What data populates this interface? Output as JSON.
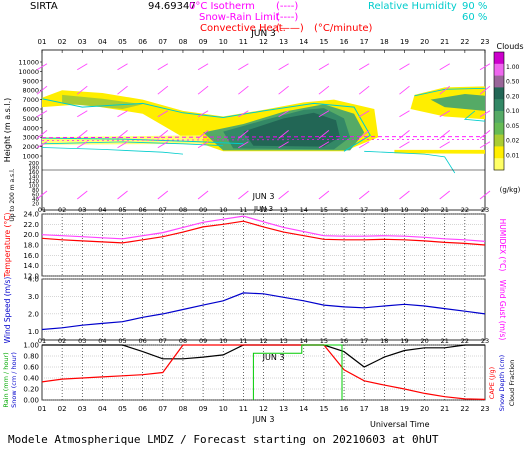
{
  "header": {
    "site": "SIRTA",
    "site_code": "94.69347",
    "legend": {
      "isotherm": {
        "label": "0°C Isotherm",
        "sample": "(----)",
        "color": "#ff00ff"
      },
      "snow_rain": {
        "label": "Snow-Rain Limit",
        "sample": "(----)",
        "color": "#ff00ff"
      },
      "convective": {
        "label": "Convective Heat.",
        "sample": "(——)",
        "unit": "(°C/minute)",
        "color": "#ff0000"
      },
      "rh": {
        "label": "Relative Humidity",
        "v1": "90 %",
        "v2": "60 %",
        "color": "#00cccc"
      }
    }
  },
  "footer": {
    "universal_time": "Universal Time",
    "caption": "Modele Atmospherique LMDZ / Forecast starting on 20210603 at 0hUT"
  },
  "chart_data": [
    {
      "id": "clouds",
      "type": "heatmap",
      "date_label": "JUN  3",
      "hours": [
        "01",
        "02",
        "03",
        "04",
        "05",
        "06",
        "07",
        "08",
        "09",
        "10",
        "11",
        "12",
        "13",
        "14",
        "15",
        "16",
        "17",
        "18",
        "19",
        "20",
        "21",
        "22",
        "23"
      ],
      "ylabel": "Height  (m a.s.l.)",
      "ylabel2": "Up to 200 m a.s.l.",
      "yticks_upper": [
        "11000",
        "10000",
        "9000",
        "8000",
        "7000",
        "6000",
        "5000",
        "4000",
        "3000",
        "2000",
        "1000"
      ],
      "yticks_lower": [
        "200",
        "180",
        "160",
        "140",
        "120",
        "100",
        "80",
        "60",
        "40",
        "20"
      ],
      "colorbar": {
        "title": "Clouds",
        "unit": "(g/kg)",
        "labels": [
          "1.00",
          "0.50",
          "0.20",
          "0.10",
          "0.05",
          "0.02",
          "0.01"
        ],
        "colors": [
          "#cc00cc",
          "#ee66ee",
          "#996699",
          "#226655",
          "#338866",
          "#55aa66",
          "#66bb55",
          "#aacc33",
          "#ffee00",
          "#ffff66"
        ]
      },
      "cloud_layers": [
        {
          "name": "thick cloud core",
          "x_hours": [
            9.5,
            16.8
          ],
          "height_m": [
            1400,
            6200
          ],
          "max_gkg": 0.2
        }
      ]
    },
    {
      "id": "temperature",
      "type": "line",
      "date_label": "JUN  3",
      "ylabel": "Temperature (°C)",
      "ylabel2": "HUMIDEX (°C)",
      "yticks": [
        "24.0",
        "22.0",
        "20.0",
        "18.0",
        "16.0",
        "14.0",
        "12.0"
      ],
      "ylim": [
        12,
        24
      ],
      "x": [
        1,
        2,
        3,
        4,
        5,
        6,
        7,
        8,
        9,
        10,
        11,
        12,
        13,
        14,
        15,
        16,
        17,
        18,
        19,
        20,
        21,
        22,
        23
      ],
      "series": [
        {
          "values": [
            19.3,
            19.0,
            18.8,
            18.6,
            18.4,
            19.0,
            19.6,
            20.5,
            21.5,
            22.0,
            22.6,
            21.5,
            20.5,
            19.8,
            19.1,
            19.0,
            19.0,
            19.1,
            19.0,
            18.8,
            18.5,
            18.3,
            18.0
          ],
          "color": "#ff0000"
        },
        {
          "values": [
            20.0,
            19.8,
            19.6,
            19.4,
            19.2,
            19.8,
            20.4,
            21.4,
            22.4,
            23.0,
            23.6,
            22.5,
            21.4,
            20.6,
            19.8,
            19.7,
            19.7,
            19.8,
            19.7,
            19.5,
            19.2,
            19.0,
            18.7
          ],
          "color": "#ff44ff"
        }
      ]
    },
    {
      "id": "wind",
      "type": "line",
      "ylabel": "Wind Speed (m/s)",
      "ylabel2": "Wind Gust (m/s)",
      "yticks": [
        "4.0",
        "3.0",
        "2.0",
        "1.0"
      ],
      "ylim": [
        0.5,
        4.0
      ],
      "x": [
        1,
        2,
        3,
        4,
        5,
        6,
        7,
        8,
        9,
        10,
        11,
        12,
        13,
        14,
        15,
        16,
        17,
        18,
        19,
        20,
        21,
        22,
        23
      ],
      "series": [
        {
          "values": [
            1.1,
            1.2,
            1.35,
            1.45,
            1.55,
            1.8,
            2.0,
            2.25,
            2.5,
            2.75,
            3.2,
            3.15,
            2.95,
            2.75,
            2.5,
            2.4,
            2.35,
            2.45,
            2.55,
            2.45,
            2.3,
            2.15,
            2.0
          ],
          "color": "#0000cc"
        }
      ]
    },
    {
      "id": "precip",
      "type": "line",
      "date_label": "JUN  3",
      "xlabel": "Universal Time",
      "ylabel": "Rain (mm / hour)",
      "ylabel2": "Snow (cm / hour)",
      "ylabel3": "CAPE (J/g)",
      "ylabel4": "Snow Depth (cm)",
      "ylabel5": "Cloud Fraction",
      "yticks": [
        "1.00",
        "0.80",
        "0.60",
        "0.40",
        "0.20",
        "0.00"
      ],
      "ylim": [
        0,
        1
      ],
      "x": [
        1,
        2,
        3,
        4,
        5,
        6,
        7,
        8,
        9,
        10,
        11,
        12,
        13,
        14,
        15,
        16,
        17,
        18,
        19,
        20,
        21,
        22,
        23
      ],
      "series": [
        {
          "name_key": "cloud_fraction",
          "values": [
            1.0,
            1.0,
            1.0,
            1.0,
            1.0,
            0.88,
            0.75,
            0.75,
            0.78,
            0.82,
            1.0,
            1.0,
            1.0,
            1.0,
            1.0,
            0.88,
            0.6,
            0.78,
            0.9,
            0.95,
            0.95,
            1.0,
            1.0
          ],
          "color": "#000000"
        },
        {
          "name_key": "cape",
          "values": [
            0.33,
            0.38,
            0.4,
            0.42,
            0.44,
            0.46,
            0.5,
            1.0,
            1.0,
            1.0,
            1.0,
            1.0,
            1.0,
            1.0,
            1.0,
            0.55,
            0.35,
            0.27,
            0.2,
            0.12,
            0.06,
            0.02,
            0.01
          ],
          "color": "#ff0000"
        },
        {
          "name_key": "rain",
          "step_x": [
            11.5,
            11.5,
            13.9,
            13.9,
            15.9,
            15.9
          ],
          "step_y": [
            0,
            0.85,
            0.85,
            1.0,
            1.0,
            0
          ],
          "color": "#00cc00"
        }
      ]
    }
  ]
}
